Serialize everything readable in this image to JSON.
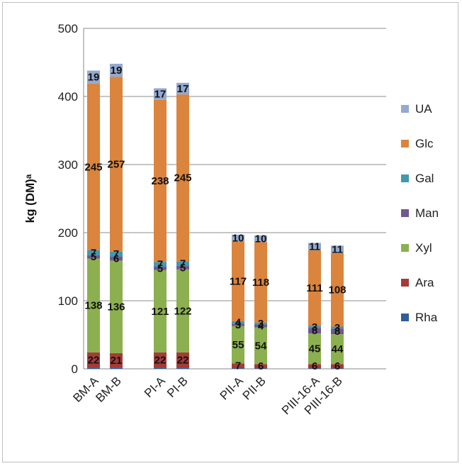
{
  "chart_data": {
    "type": "bar",
    "stacked": true,
    "ylabel": "kg (DM)ᵃ",
    "ylim": [
      0,
      500
    ],
    "yticks": [
      0,
      100,
      200,
      300,
      400,
      500
    ],
    "grid": true,
    "legend_position": "right",
    "categories": [
      "BM-A",
      "BM-B",
      "PI-A",
      "PI-B",
      "PII-A",
      "PII-B",
      "PIII-16-A",
      "PIII-16-B"
    ],
    "groups": [
      [
        0,
        1
      ],
      [
        2,
        3
      ],
      [
        4,
        5
      ],
      [
        6,
        7
      ]
    ],
    "series": [
      {
        "name": "Rha",
        "color": "#2f5f98",
        "values": [
          2,
          2,
          2,
          2,
          1,
          1,
          1,
          1
        ],
        "labels": [
          "",
          "",
          "",
          "",
          "",
          "",
          "",
          ""
        ]
      },
      {
        "name": "Ara",
        "color": "#a33b39",
        "values": [
          22,
          21,
          22,
          22,
          7,
          6,
          6,
          6
        ],
        "labels": [
          "22",
          "21",
          "22",
          "22",
          "7",
          "6",
          "6",
          "6"
        ]
      },
      {
        "name": "Xyl",
        "color": "#8cb04f",
        "values": [
          138,
          136,
          121,
          122,
          55,
          54,
          45,
          44
        ],
        "labels": [
          "138",
          "136",
          "121",
          "122",
          "55",
          "54",
          "45",
          "44"
        ]
      },
      {
        "name": "Man",
        "color": "#71588f",
        "values": [
          5,
          6,
          5,
          5,
          3,
          4,
          8,
          8
        ],
        "labels": [
          "5",
          "6",
          "5",
          "5",
          "3",
          "4",
          "8",
          "8"
        ]
      },
      {
        "name": "Gal",
        "color": "#4198af",
        "values": [
          7,
          7,
          7,
          7,
          4,
          3,
          3,
          3
        ],
        "labels": [
          "7",
          "7",
          "7",
          "7",
          "4",
          "3",
          "3",
          "3"
        ]
      },
      {
        "name": "Glc",
        "color": "#db843d",
        "values": [
          245,
          257,
          238,
          245,
          117,
          118,
          111,
          108
        ],
        "labels": [
          "245",
          "257",
          "238",
          "245",
          "117",
          "118",
          "111",
          "108"
        ]
      },
      {
        "name": "UA",
        "color": "#93a9cf",
        "values": [
          19,
          19,
          17,
          17,
          10,
          10,
          11,
          11
        ],
        "labels": [
          "19",
          "19",
          "17",
          "17",
          "10",
          "10",
          "11",
          "11"
        ]
      }
    ],
    "legend": [
      "UA",
      "Glc",
      "Gal",
      "Man",
      "Xyl",
      "Ara",
      "Rha"
    ]
  }
}
